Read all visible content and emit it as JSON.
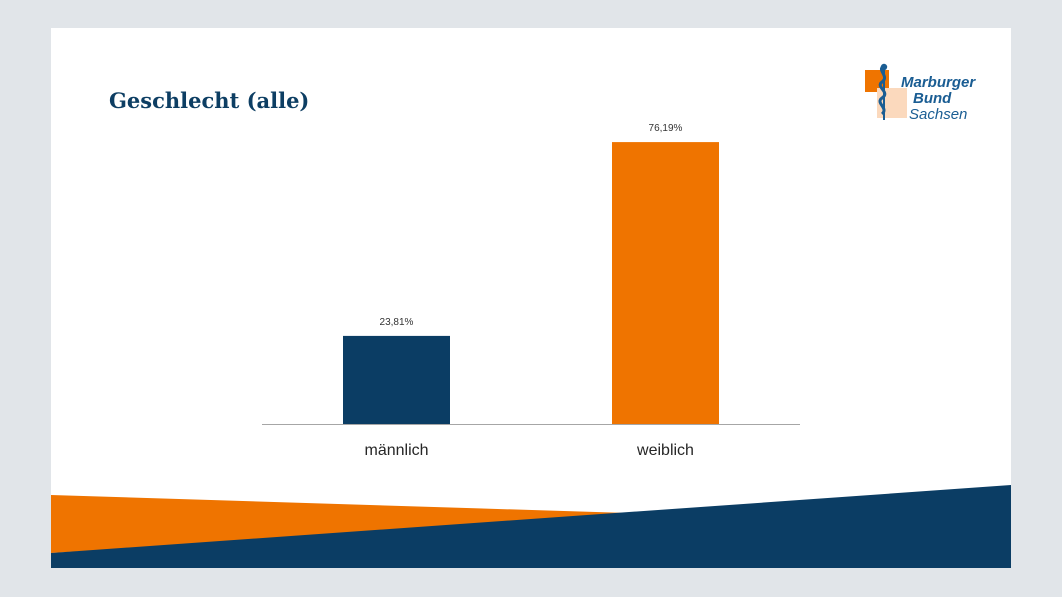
{
  "slide": {
    "title": "Geschlecht (alle)"
  },
  "logo": {
    "line1": "Marburger",
    "line2": "Bund",
    "line3": "Sachsen"
  },
  "colors": {
    "background": "#e1e5e9",
    "navy": "#0b3d64",
    "orange": "#ef7400",
    "title": "#0d3e63",
    "logo_blue": "#1a5d93"
  },
  "chart_data": {
    "type": "bar",
    "categories": [
      "männlich",
      "weiblich"
    ],
    "values": [
      23.81,
      76.19
    ],
    "data_labels": [
      "23,81%",
      "76,19%"
    ],
    "bar_colors": [
      "#0b3d64",
      "#ef7400"
    ],
    "ylim": [
      0,
      80
    ],
    "grid": false,
    "legend": "none",
    "title": "",
    "xlabel": "",
    "ylabel": ""
  }
}
